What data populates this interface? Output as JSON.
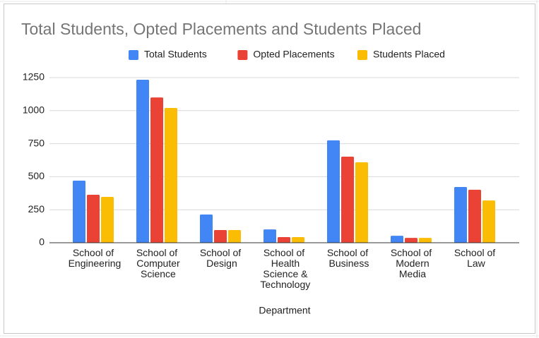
{
  "chart_data": {
    "type": "bar",
    "title": "Total Students, Opted Placements and Students Placed",
    "x_label": "Department",
    "categories": [
      "School of Engineering",
      "School of Computer Science",
      "School of Design",
      "School of Health Science & Technology",
      "School of Business",
      "School of Modern Media",
      "School of Law"
    ],
    "series": [
      {
        "name": "Total Students",
        "color": "#4285f4",
        "values": [
          470,
          1234,
          214,
          101,
          775,
          53,
          422
        ]
      },
      {
        "name": "Opted Placements",
        "color": "#ea4335",
        "values": [
          363,
          1100,
          96,
          43,
          652,
          37,
          401
        ]
      },
      {
        "name": "Students Placed",
        "color": "#fbbc04",
        "values": [
          347,
          1020,
          96,
          43,
          609,
          37,
          320
        ]
      }
    ],
    "ylim": [
      0,
      1250
    ],
    "yticks": [
      0,
      250,
      500,
      750,
      1000,
      1250
    ],
    "grid": true,
    "legend": "top"
  }
}
